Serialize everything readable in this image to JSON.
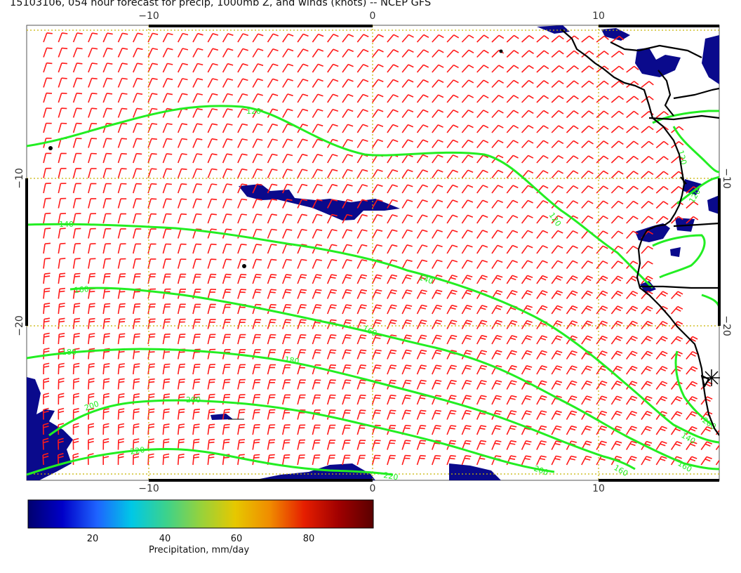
{
  "title": "15103106, 054 hour forecast for precip, 1000mb Z, and winds (knots) -- NCEP GFS",
  "axes": {
    "x_ticks": [
      "−10",
      "0",
      "10"
    ],
    "y_ticks": [
      "−10",
      "−20"
    ]
  },
  "contours": {
    "levels": [
      "120",
      "140",
      "160",
      "180",
      "200",
      "220"
    ],
    "color": "#22ee22"
  },
  "wind_barb_color": "#ff1a1a",
  "coastline_color": "#000000",
  "grid_color": "#c8b400",
  "colorbar": {
    "label": "Precipitation, mm/day",
    "ticks": [
      "20",
      "40",
      "60",
      "80"
    ],
    "range": [
      0,
      96
    ],
    "colors": [
      "#00006e",
      "#0000c8",
      "#1e64ff",
      "#00c8e6",
      "#3cd28c",
      "#96d23c",
      "#e6c800",
      "#f08c00",
      "#e61e00",
      "#a00000",
      "#5a0000"
    ]
  }
}
